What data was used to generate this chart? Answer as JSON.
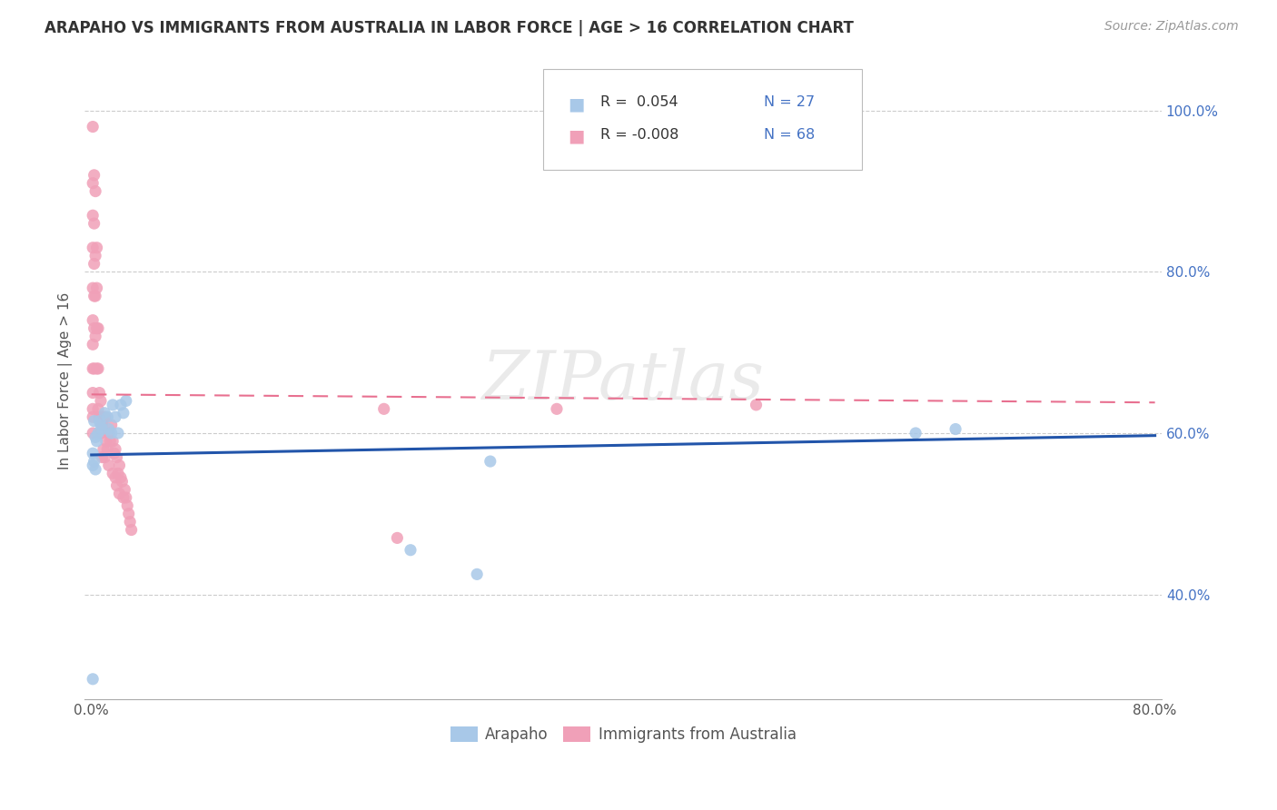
{
  "title": "ARAPAHO VS IMMIGRANTS FROM AUSTRALIA IN LABOR FORCE | AGE > 16 CORRELATION CHART",
  "source": "Source: ZipAtlas.com",
  "ylabel": "In Labor Force | Age > 16",
  "xlim": [
    -0.005,
    0.805
  ],
  "ylim": [
    0.27,
    1.06
  ],
  "xticks": [
    0.0,
    0.1,
    0.2,
    0.3,
    0.4,
    0.5,
    0.6,
    0.7,
    0.8
  ],
  "xticklabels": [
    "0.0%",
    "",
    "",
    "",
    "",
    "",
    "",
    "",
    "80.0%"
  ],
  "yticks": [
    0.4,
    0.6,
    0.8,
    1.0
  ],
  "yticklabels": [
    "40.0%",
    "60.0%",
    "80.0%",
    "100.0%"
  ],
  "arapaho_color": "#a8c8e8",
  "australia_color": "#f0a0b8",
  "trend_arapaho_color": "#2255aa",
  "trend_australia_color": "#e87090",
  "legend_r_arapaho": "R =  0.054",
  "legend_n_arapaho": "N = 27",
  "legend_r_australia": "R = -0.008",
  "legend_n_australia": "N = 68",
  "watermark": "ZIPatlas",
  "arapaho_r": 0.054,
  "australia_r": -0.008,
  "arapaho_x": [
    0.001,
    0.001,
    0.001,
    0.002,
    0.002,
    0.003,
    0.003,
    0.004,
    0.005,
    0.006,
    0.007,
    0.008,
    0.01,
    0.012,
    0.013,
    0.015,
    0.016,
    0.018,
    0.02,
    0.022,
    0.024,
    0.026,
    0.24,
    0.29,
    0.3,
    0.62,
    0.65
  ],
  "arapaho_y": [
    0.295,
    0.56,
    0.575,
    0.565,
    0.615,
    0.555,
    0.595,
    0.59,
    0.6,
    0.615,
    0.61,
    0.605,
    0.625,
    0.62,
    0.605,
    0.6,
    0.635,
    0.62,
    0.6,
    0.635,
    0.625,
    0.64,
    0.455,
    0.425,
    0.565,
    0.6,
    0.605
  ],
  "australia_x": [
    0.001,
    0.001,
    0.001,
    0.001,
    0.001,
    0.001,
    0.001,
    0.001,
    0.001,
    0.001,
    0.001,
    0.001,
    0.002,
    0.002,
    0.002,
    0.002,
    0.002,
    0.002,
    0.003,
    0.003,
    0.003,
    0.003,
    0.004,
    0.004,
    0.004,
    0.004,
    0.005,
    0.005,
    0.005,
    0.006,
    0.006,
    0.007,
    0.007,
    0.008,
    0.008,
    0.009,
    0.009,
    0.01,
    0.01,
    0.011,
    0.012,
    0.013,
    0.013,
    0.014,
    0.015,
    0.016,
    0.016,
    0.017,
    0.018,
    0.018,
    0.019,
    0.019,
    0.02,
    0.021,
    0.021,
    0.022,
    0.023,
    0.024,
    0.025,
    0.026,
    0.027,
    0.028,
    0.029,
    0.03,
    0.22,
    0.23,
    0.35,
    0.5
  ],
  "australia_y": [
    0.98,
    0.91,
    0.87,
    0.83,
    0.78,
    0.74,
    0.71,
    0.68,
    0.65,
    0.63,
    0.62,
    0.6,
    0.92,
    0.86,
    0.81,
    0.77,
    0.73,
    0.68,
    0.9,
    0.82,
    0.77,
    0.72,
    0.83,
    0.78,
    0.73,
    0.68,
    0.73,
    0.68,
    0.63,
    0.65,
    0.62,
    0.64,
    0.6,
    0.61,
    0.57,
    0.62,
    0.58,
    0.62,
    0.57,
    0.59,
    0.58,
    0.6,
    0.56,
    0.59,
    0.61,
    0.59,
    0.55,
    0.575,
    0.58,
    0.545,
    0.57,
    0.535,
    0.55,
    0.56,
    0.525,
    0.545,
    0.54,
    0.52,
    0.53,
    0.52,
    0.51,
    0.5,
    0.49,
    0.48,
    0.63,
    0.47,
    0.63,
    0.635
  ],
  "trend_arapaho_x0": 0.0,
  "trend_arapaho_y0": 0.573,
  "trend_arapaho_x1": 0.8,
  "trend_arapaho_y1": 0.597,
  "trend_australia_x0": 0.0,
  "trend_australia_y0": 0.648,
  "trend_australia_x1": 0.8,
  "trend_australia_y1": 0.638
}
